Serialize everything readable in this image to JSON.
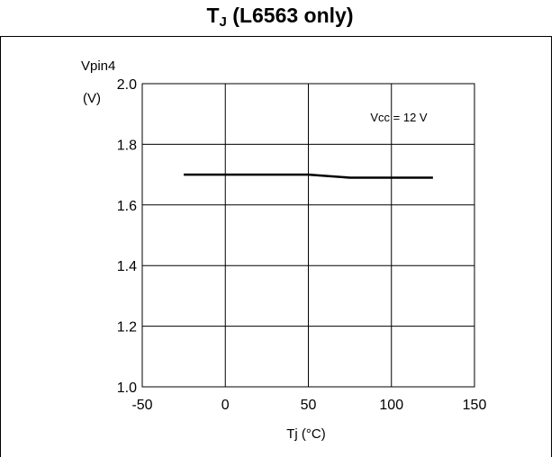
{
  "heading": {
    "main": "T",
    "sub": "J",
    "rest": " (L6563 only)"
  },
  "chart_data": {
    "type": "line",
    "ylabel_line1": "Vpin4",
    "ylabel_line2": "(V)",
    "xlabel": "Tj  (°C)",
    "annotation": "Vcc = 12 V",
    "xlim": [
      -50,
      150
    ],
    "ylim": [
      1.0,
      2.0
    ],
    "x_ticks": [
      -50,
      0,
      50,
      100,
      150
    ],
    "y_ticks": [
      1.0,
      1.2,
      1.4,
      1.6,
      1.8,
      2.0
    ],
    "x_tick_labels": [
      "-50",
      "0",
      "50",
      "100",
      "150"
    ],
    "y_tick_labels": [
      "1.0",
      "1.2",
      "1.4",
      "1.6",
      "1.8",
      "2.0"
    ],
    "grid": true,
    "series": [
      {
        "x": [
          -25,
          0,
          25,
          50,
          75,
          100,
          125
        ],
        "y": [
          1.7,
          1.7,
          1.7,
          1.7,
          1.69,
          1.69,
          1.69
        ]
      }
    ]
  }
}
